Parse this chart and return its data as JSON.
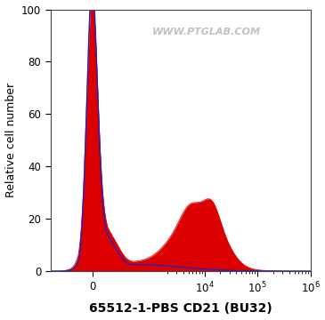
{
  "xlabel": "65512-1-PBS CD21 (BU32)",
  "ylabel": "Relative cell number",
  "ylim": [
    0,
    100
  ],
  "yticks": [
    0,
    20,
    40,
    60,
    80,
    100
  ],
  "watermark": "WWW.PTGLAB.COM",
  "blue_color": "#2222bb",
  "red_color": "#dd0000",
  "bg_color": "#ffffff",
  "linthresh": 150,
  "linscale": 0.25,
  "xlim_low": -500,
  "xlim_high": 1000000
}
